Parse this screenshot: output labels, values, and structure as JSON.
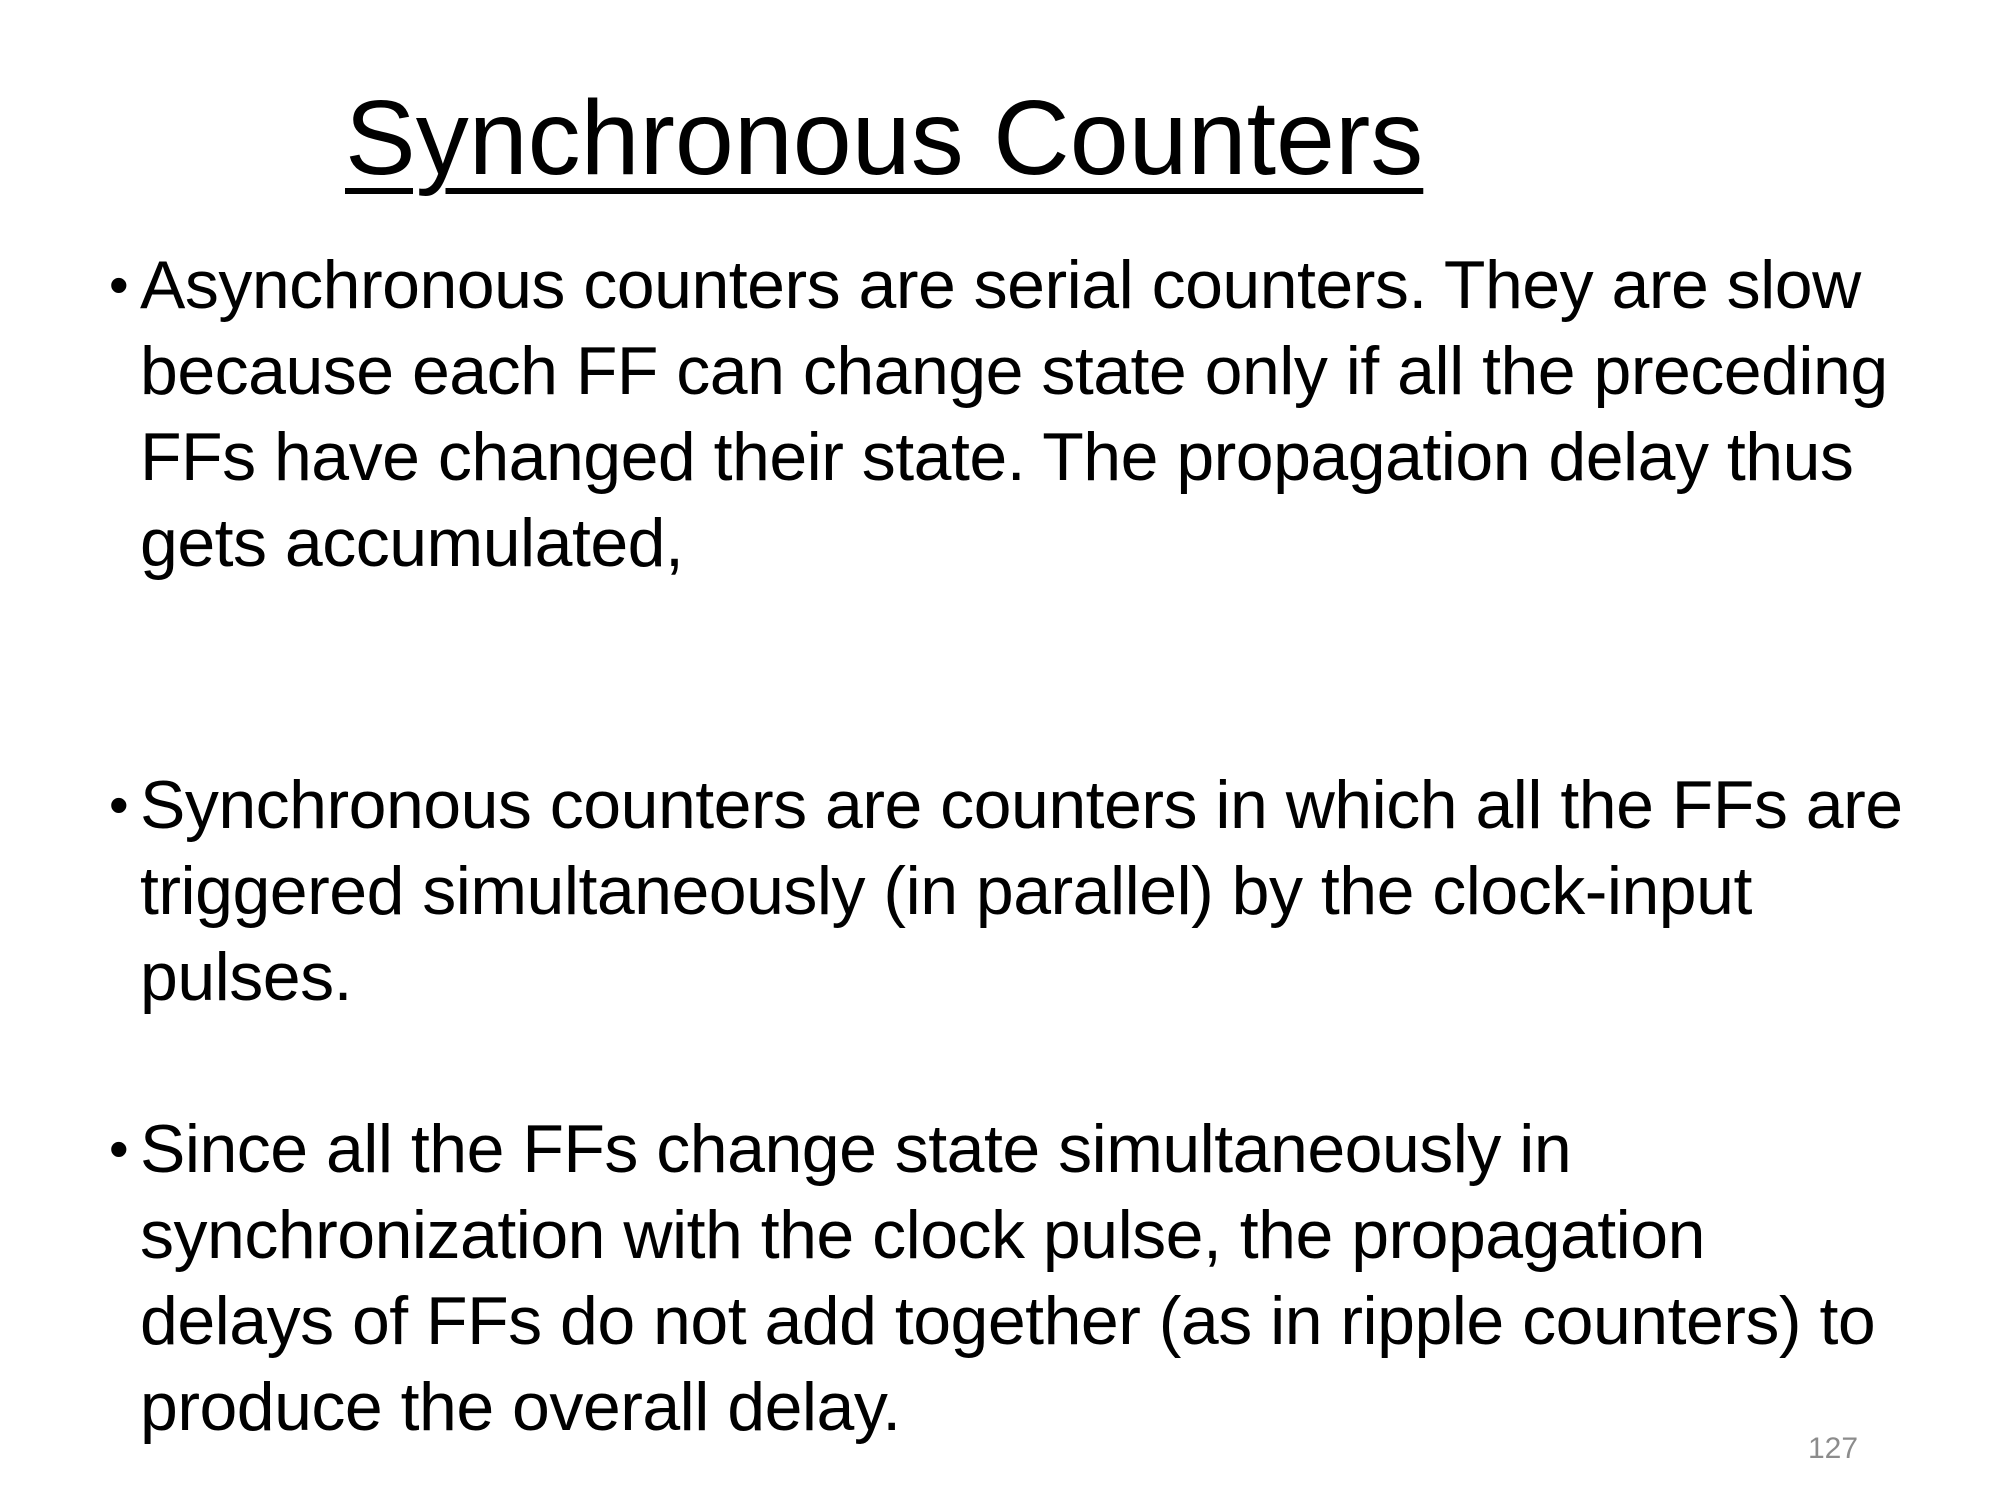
{
  "slide": {
    "title": "Synchronous Counters",
    "bullets": [
      "Asynchronous counters are serial counters. They are slow because each FF can change state only if all the preceding FFs have changed their state. The propagation delay thus gets accumulated,",
      "Synchronous counters are counters in which all the FFs are triggered simultaneously (in parallel) by the clock-input pulses.",
      "Since all the FFs change state simultaneously in synchronization with the clock pulse, the propagation delays of FFs do not add together (as in ripple counters) to produce the overall delay."
    ],
    "page_number": "127"
  }
}
